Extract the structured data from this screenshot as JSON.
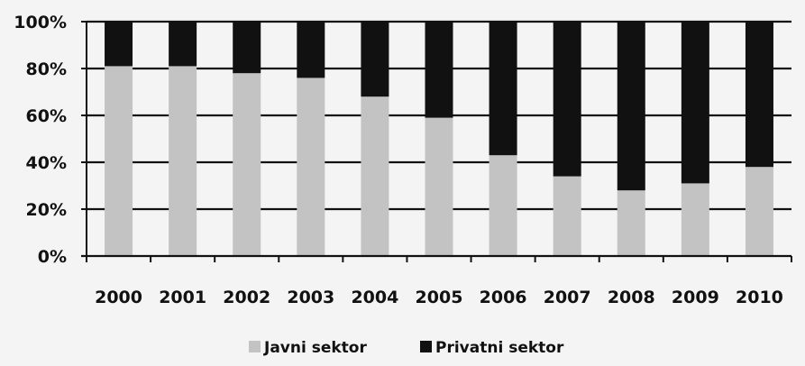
{
  "chart_data": {
    "type": "bar",
    "stacked": true,
    "percent": true,
    "categories": [
      "2000",
      "2001",
      "2002",
      "2003",
      "2004",
      "2005",
      "2006",
      "2007",
      "2008",
      "2009",
      "2010"
    ],
    "series": [
      {
        "name": "Javni sektor",
        "color": "#c3c3c3",
        "values": [
          81,
          81,
          78,
          76,
          68,
          59,
          43,
          34,
          28,
          31,
          38
        ]
      },
      {
        "name": "Privatni sektor",
        "color": "#111111",
        "values": [
          19,
          19,
          22,
          24,
          32,
          41,
          57,
          66,
          72,
          69,
          62
        ]
      }
    ],
    "y_ticks": [
      "0%",
      "20%",
      "40%",
      "60%",
      "80%",
      "100%"
    ],
    "ylim": [
      0,
      100
    ],
    "grid": true,
    "legend_position": "bottom"
  }
}
